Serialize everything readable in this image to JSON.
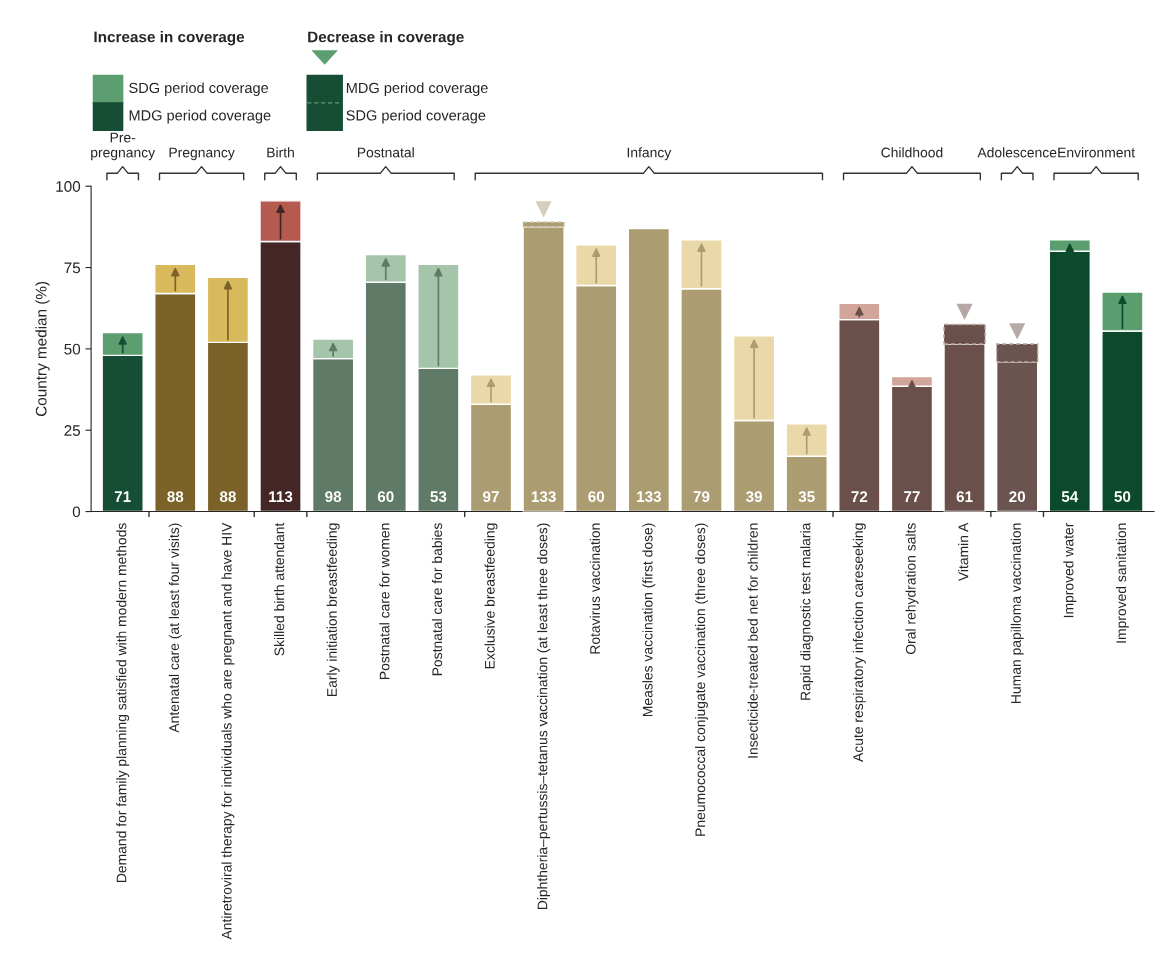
{
  "chart_data": {
    "type": "bar",
    "ylabel": "Country median (%)",
    "ylim": [
      0,
      100
    ],
    "yticks": [
      0,
      25,
      50,
      75,
      100
    ],
    "grid": false,
    "legend": "top left",
    "stacked": true,
    "categories": [
      "Demand for family planning satisfied with modern methods",
      "Antenatal care (at least four visits)",
      "Antiretroviral therapy for individuals who are pregnant and have HIV",
      "Skilled birth attendant",
      "Early initiation breastfeeding",
      "Postnatal care for women",
      "Postnatal care for babies",
      "Exclusive breastfeeding",
      "Diphtheria–pertussis–tetanus vaccination (at least three doses)",
      "Rotavirus vaccination",
      "Measles vaccination (first dose)",
      "Pneumococcal conjugate vaccination (three doses)",
      "Insecticide-treated bed net for children",
      "Rapid diagnostic test malaria",
      "Acute respiratory infection careseeking",
      "Oral rehydration salts",
      "Vitamin A",
      "Human papilloma vaccination",
      "Improved water",
      "Improved sanitation"
    ],
    "series": [
      {
        "name": "MDG period coverage",
        "values": [
          48,
          67,
          52,
          83,
          47,
          70.5,
          44,
          33,
          null,
          69.5,
          87,
          68.5,
          28,
          17,
          59,
          38.5,
          null,
          null,
          80,
          55.5
        ],
        "colors": [
          "#164d35",
          "#7a6229",
          "#7a6229",
          "#452626",
          "#5f7a66",
          "#5f7a66",
          "#5f7a66",
          "#ab9c72",
          "#ab9c72",
          "#ab9c72",
          "#ab9c72",
          "#ab9c72",
          "#ab9c72",
          "#ab9c72",
          "#6b4f4a",
          "#6b4f4a",
          "#6b4f4a",
          "#6b5450",
          "#0b4a2c",
          "#0b4a2c"
        ]
      },
      {
        "name": "SDG period coverage",
        "values": [
          7,
          9,
          20,
          12.5,
          6,
          8.5,
          32,
          9,
          87.5,
          12.5,
          null,
          15,
          26,
          10,
          5,
          3,
          51.5,
          46,
          3.5,
          12
        ],
        "colors": [
          "#5c9e70",
          "#d8b95c",
          "#d8b95c",
          "#b55a4e",
          "#a5c5aa",
          "#a5c5aa",
          "#a5c5aa",
          "#ebd8a8",
          "#ab9c72",
          "#ebd8a8",
          "#ebd8a8",
          "#ebd8a8",
          "#ebd8a8",
          "#ebd8a8",
          "#d1a59a",
          "#d1a59a",
          "#6b4f4a",
          "#6b5450",
          "#5a9e70",
          "#5a9e70"
        ]
      },
      {
        "values": [
          null,
          null,
          null,
          null,
          null,
          null,
          null,
          null,
          1.5,
          null,
          null,
          null,
          null,
          null,
          null,
          null,
          6,
          5.5,
          null,
          null
        ],
        "colors": [
          "#ab9c72",
          "#ab9c72",
          "#ab9c72",
          "#ab9c72",
          "#ab9c72",
          "#ab9c72",
          "#ab9c72",
          "#ab9c72",
          "#ab9c72",
          "#ab9c72",
          "#ab9c72",
          "#ab9c72",
          "#ab9c72",
          "#ab9c72",
          "#ab9c72",
          "#ab9c72",
          "#6b4f4a",
          "#6b5450",
          "#ab9c72",
          "#ab9c72"
        ]
      }
    ],
    "annotations": [
      "Pre-\npregnancy",
      "Pregnancy",
      "Birth",
      "Postnatal",
      "Infancy",
      "Childhood",
      "Adolescence",
      "Environment",
      "Increase in coverage",
      "Decrease in coverage",
      "71",
      "88",
      "88",
      "113",
      "98",
      "60",
      "53",
      "97",
      "133",
      "60",
      "133",
      "79",
      "39",
      "35",
      "72",
      "77",
      "61",
      "20",
      "54",
      "50"
    ]
  }
}
